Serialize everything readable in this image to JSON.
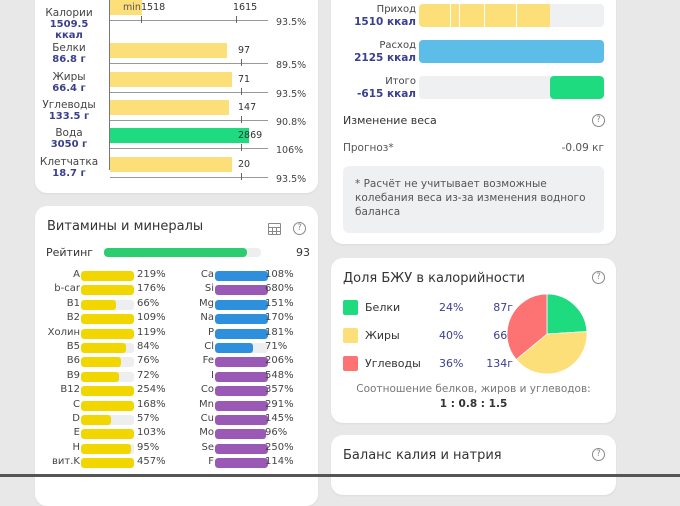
{
  "macros": {
    "rows": [
      {
        "name": "Калории",
        "value": "1509.5",
        "unit": "ккал",
        "target": "1615",
        "min_label": "min",
        "min_value": "1518",
        "percent": "93.5%",
        "fill_ratio": 0.935,
        "color": "#fddf7a"
      },
      {
        "name": "Белки",
        "value": "86.8 г",
        "target": "97",
        "percent": "89.5%",
        "fill_ratio": 0.895,
        "color": "#fddf7a"
      },
      {
        "name": "Жиры",
        "value": "66.4 г",
        "target": "71",
        "percent": "93.5%",
        "fill_ratio": 0.935,
        "color": "#fddf7a"
      },
      {
        "name": "Углеводы",
        "value": "133.5 г",
        "target": "147",
        "percent": "90.8%",
        "fill_ratio": 0.908,
        "color": "#fddf7a"
      },
      {
        "name": "Вода",
        "value": "3050 г",
        "target": "2869",
        "percent": "106%",
        "fill_ratio": 1.06,
        "color": "#1ddb7e"
      },
      {
        "name": "Клетчатка",
        "value": "18.7 г",
        "target": "20",
        "percent": "93.5%",
        "fill_ratio": 0.935,
        "color": "#fddf7a"
      }
    ]
  },
  "vitamins": {
    "title": "Витамины и минералы",
    "rating_label": "Рейтинг",
    "rating_value": "93",
    "rating_ratio": 0.93,
    "colors": {
      "vitamin": "#f2d600",
      "mineral_blue": "#2e8fdc",
      "mineral_purple": "#9b59b6",
      "rating": "#2ecc71"
    },
    "left": [
      {
        "name": "A",
        "percent": "219%",
        "ratio": 2.19
      },
      {
        "name": "b-car",
        "percent": "176%",
        "ratio": 1.76
      },
      {
        "name": "B1",
        "percent": "66%",
        "ratio": 0.66
      },
      {
        "name": "B2",
        "percent": "109%",
        "ratio": 1.09
      },
      {
        "name": "Холин",
        "percent": "119%",
        "ratio": 1.19
      },
      {
        "name": "B5",
        "percent": "84%",
        "ratio": 0.84
      },
      {
        "name": "B6",
        "percent": "76%",
        "ratio": 0.76
      },
      {
        "name": "B9",
        "percent": "72%",
        "ratio": 0.72
      },
      {
        "name": "B12",
        "percent": "254%",
        "ratio": 2.54
      },
      {
        "name": "C",
        "percent": "168%",
        "ratio": 1.68
      },
      {
        "name": "D",
        "percent": "57%",
        "ratio": 0.57
      },
      {
        "name": "E",
        "percent": "103%",
        "ratio": 1.03
      },
      {
        "name": "H",
        "percent": "95%",
        "ratio": 0.95
      },
      {
        "name": "вит.K",
        "percent": "457%",
        "ratio": 4.57
      }
    ],
    "right": [
      {
        "name": "Ca",
        "percent": "108%",
        "ratio": 1.08,
        "kind": "blue"
      },
      {
        "name": "Si",
        "percent": "680%",
        "ratio": 6.8,
        "kind": "purple"
      },
      {
        "name": "Mg",
        "percent": "151%",
        "ratio": 1.51,
        "kind": "blue"
      },
      {
        "name": "Na",
        "percent": "170%",
        "ratio": 1.7,
        "kind": "blue"
      },
      {
        "name": "P",
        "percent": "181%",
        "ratio": 1.81,
        "kind": "blue"
      },
      {
        "name": "Cl",
        "percent": "71%",
        "ratio": 0.71,
        "kind": "blue"
      },
      {
        "name": "Fe",
        "percent": "206%",
        "ratio": 2.06,
        "kind": "purple"
      },
      {
        "name": "I",
        "percent": "548%",
        "ratio": 5.48,
        "kind": "purple"
      },
      {
        "name": "Co",
        "percent": "357%",
        "ratio": 3.57,
        "kind": "purple"
      },
      {
        "name": "Mn",
        "percent": "291%",
        "ratio": 2.91,
        "kind": "purple"
      },
      {
        "name": "Cu",
        "percent": "145%",
        "ratio": 1.45,
        "kind": "purple"
      },
      {
        "name": "Mo",
        "percent": "96%",
        "ratio": 0.96,
        "kind": "purple"
      },
      {
        "name": "Se",
        "percent": "250%",
        "ratio": 2.5,
        "kind": "purple"
      },
      {
        "name": "F",
        "percent": "114%",
        "ratio": 1.14,
        "kind": "purple"
      }
    ]
  },
  "energy": {
    "rows": [
      {
        "label": "Приход",
        "value": "1510 ккал",
        "fill_ratio": 0.71,
        "color": "#fddf7a",
        "segmented": true
      },
      {
        "label": "Расход",
        "value": "2125 ккал",
        "fill_ratio": 1.0,
        "color": "#5bbde8"
      },
      {
        "label": "Итого",
        "value": "-615 ккал",
        "fill_ratio": 0.29,
        "color": "#1ddb7e",
        "align": "right"
      }
    ],
    "weight_title": "Изменение веса",
    "forecast_label": "Прогноз*",
    "forecast_value": "-0.09 кг",
    "note": "* Расчёт не учитывает возможные колебания веса из-за изменения водного баланса"
  },
  "bju": {
    "title": "Доля БЖУ в калорийности",
    "items": [
      {
        "name": "Белки",
        "percent": "24%",
        "grams": "87г",
        "share": 24,
        "color": "#1ddb7e"
      },
      {
        "name": "Жиры",
        "percent": "40%",
        "grams": "66г",
        "share": 40,
        "color": "#fddf7a"
      },
      {
        "name": "Углеводы",
        "percent": "36%",
        "grams": "134г",
        "share": 36,
        "color": "#fd7272"
      }
    ],
    "ratio_caption": "Соотношение белков, жиров и углеводов:",
    "ratio_value": "1 : 0.8 : 1.5"
  },
  "balance": {
    "title": "Баланс калия и натрия"
  }
}
